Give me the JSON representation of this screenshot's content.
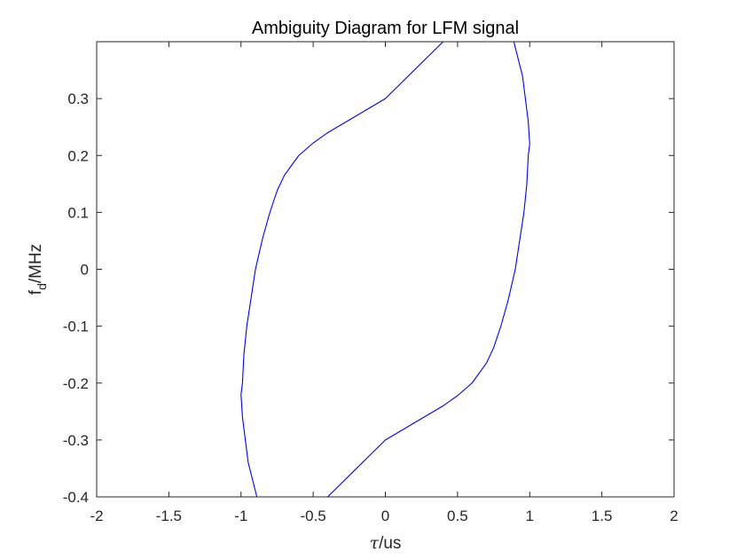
{
  "chart_data": {
    "type": "line",
    "title": "Ambiguity Diagram for LFM signal",
    "xlabel": {
      "symbol": "τ",
      "unit": "/us"
    },
    "ylabel": {
      "base": "f",
      "subscript": "d",
      "unit": "/MHz"
    },
    "xlim": [
      -2,
      2
    ],
    "ylim": [
      -0.4,
      0.4
    ],
    "xticks": [
      -2,
      -1.5,
      -1,
      -0.5,
      0,
      0.5,
      1,
      1.5,
      2
    ],
    "xtick_labels": [
      "-2",
      "-1.5",
      "-1",
      "-0.5",
      "0",
      "0.5",
      "1",
      "1.5",
      "2"
    ],
    "yticks": [
      -0.4,
      -0.3,
      -0.2,
      -0.1,
      0,
      0.1,
      0.2,
      0.3
    ],
    "ytick_labels": [
      "-0.4",
      "-0.3",
      "-0.2",
      "-0.1",
      "0",
      "0.1",
      "0.2",
      "0.3"
    ],
    "grid": false,
    "line_color": "#0000ff",
    "series": [
      {
        "x": [
          0.4,
          0.3,
          0.2,
          0.1,
          0.0,
          -0.1,
          -0.2,
          -0.3,
          -0.4,
          -0.5,
          -0.6,
          -0.7,
          -0.75,
          -0.8,
          -0.85,
          -0.9,
          -0.93,
          -0.96,
          -0.98,
          -0.99,
          -1.0,
          -0.99,
          -0.97,
          -0.95,
          -0.92,
          -0.89
        ],
        "y": [
          0.4,
          0.375,
          0.35,
          0.325,
          0.3,
          0.285,
          0.27,
          0.255,
          0.24,
          0.222,
          0.2,
          0.165,
          0.138,
          0.1,
          0.055,
          0.0,
          -0.05,
          -0.1,
          -0.15,
          -0.2,
          -0.22,
          -0.26,
          -0.3,
          -0.34,
          -0.37,
          -0.4
        ]
      },
      {
        "x": [
          -0.4,
          -0.3,
          -0.2,
          -0.1,
          0.0,
          0.1,
          0.2,
          0.3,
          0.4,
          0.5,
          0.6,
          0.7,
          0.75,
          0.8,
          0.85,
          0.9,
          0.93,
          0.96,
          0.98,
          0.99,
          1.0,
          0.99,
          0.97,
          0.95,
          0.92,
          0.89
        ],
        "y": [
          -0.4,
          -0.375,
          -0.35,
          -0.325,
          -0.3,
          -0.285,
          -0.27,
          -0.255,
          -0.24,
          -0.222,
          -0.2,
          -0.165,
          -0.138,
          -0.1,
          -0.055,
          0.0,
          0.05,
          0.1,
          0.15,
          0.2,
          0.22,
          0.26,
          0.3,
          0.34,
          0.37,
          0.4
        ]
      }
    ]
  }
}
